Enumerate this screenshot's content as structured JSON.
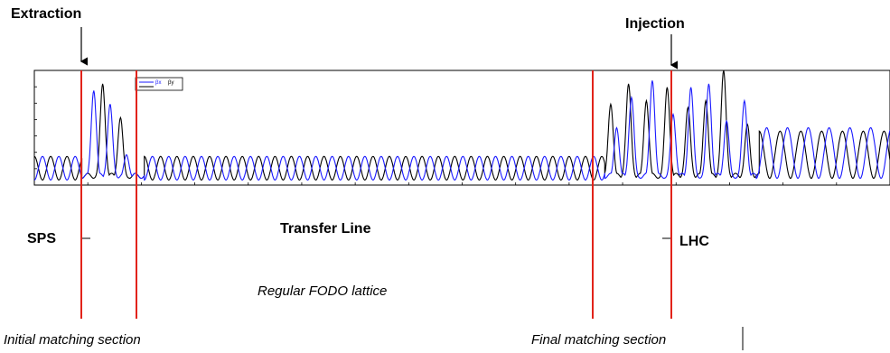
{
  "labels": {
    "extraction": "Extraction",
    "injection": "Injection",
    "sps": "SPS",
    "transfer_line": "Transfer Line",
    "lhc": "LHC",
    "regular_fodo": "Regular FODO lattice",
    "initial_matching": "Initial matching section",
    "final_matching": "Final matching section"
  },
  "legend": {
    "entries": [
      "βx",
      "βy"
    ]
  },
  "colors": {
    "beta_x": "#1a1aff",
    "beta_y": "#000000",
    "marker_line": "#e2231a",
    "axis": "#000000"
  },
  "chart_data": {
    "type": "line",
    "x": [
      0,
      2880
    ],
    "ylim": [
      0,
      340
    ],
    "series": [
      {
        "name": "βx",
        "segments": [
          {
            "from": 0,
            "to": 160,
            "period": 55,
            "min": 15,
            "max": 85
          },
          {
            "from": 160,
            "to": 370,
            "peaks": [
              [
                200,
                280
              ],
              [
                255,
                240
              ],
              [
                310,
                90
              ]
            ]
          },
          {
            "from": 370,
            "to": 1920,
            "period": 55,
            "min": 15,
            "max": 85
          },
          {
            "from": 1920,
            "to": 2880,
            "peaks": [
              [
                1960,
                170
              ],
              [
                2010,
                260
              ],
              [
                2080,
                310
              ],
              [
                2150,
                210
              ],
              [
                2210,
                290
              ],
              [
                2270,
                300
              ],
              [
                2330,
                190
              ],
              [
                2390,
                250
              ]
            ],
            "tail_period": 70,
            "tail_min": 20,
            "tail_max": 170
          }
        ]
      },
      {
        "name": "βy",
        "segments": [
          {
            "from": 0,
            "to": 160,
            "period": 55,
            "min": 15,
            "max": 85,
            "phase": 0.5
          },
          {
            "from": 160,
            "to": 370,
            "peaks": [
              [
                230,
                300
              ],
              [
                290,
                200
              ]
            ]
          },
          {
            "from": 370,
            "to": 1920,
            "period": 55,
            "min": 15,
            "max": 85,
            "phase": 0.5
          },
          {
            "from": 1920,
            "to": 2880,
            "peaks": [
              [
                1940,
                240
              ],
              [
                2000,
                300
              ],
              [
                2060,
                250
              ],
              [
                2130,
                290
              ],
              [
                2200,
                230
              ],
              [
                2260,
                250
              ],
              [
                2320,
                340
              ],
              [
                2400,
                180
              ]
            ],
            "tail_period": 70,
            "tail_min": 20,
            "tail_max": 160,
            "phase": 0.5
          }
        ]
      }
    ]
  }
}
